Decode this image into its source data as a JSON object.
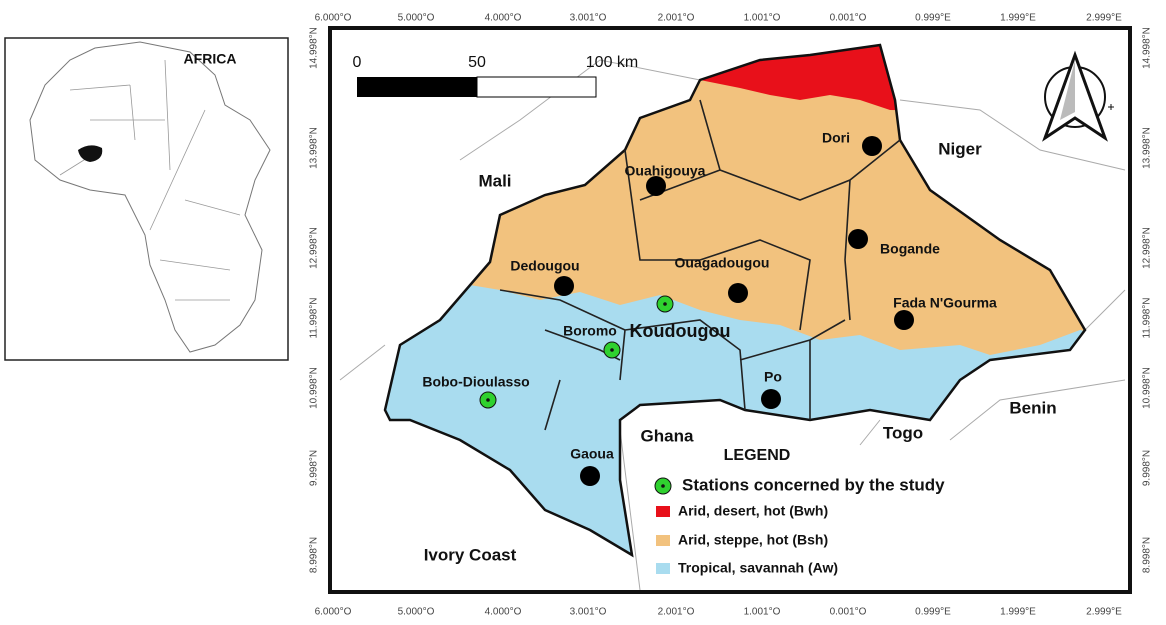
{
  "inset": {
    "label": "AFRICA"
  },
  "axes": {
    "top": [
      "6.000°O",
      "5.000°O",
      "4.000°O",
      "3.001°O",
      "2.001°O",
      "1.001°O",
      "0.001°O",
      "0.999°E",
      "1.999°E",
      "2.999°E"
    ],
    "bottom": [
      "6.000°O",
      "5.000°O",
      "4.000°O",
      "3.001°O",
      "2.001°O",
      "1.001°O",
      "0.001°O",
      "0.999°E",
      "1.999°E",
      "2.999°E"
    ],
    "left": [
      "14.998°N",
      "13.998°N",
      "12.998°N",
      "11.998°N",
      "10.998°N",
      "9.998°N",
      "8.998°N"
    ],
    "right": [
      "14.998°N",
      "13.998°N",
      "12.998°N",
      "11.998°N",
      "10.998°N",
      "9.998°N",
      "8.998°N"
    ]
  },
  "scale_bar": {
    "labels": [
      "0",
      "50",
      "100 km"
    ]
  },
  "places": [
    {
      "name": "Dori",
      "station": false
    },
    {
      "name": "Ouahigouya",
      "station": false
    },
    {
      "name": "Dedougou",
      "station": false
    },
    {
      "name": "Ouagadougou",
      "station": false
    },
    {
      "name": "Bogande",
      "station": false
    },
    {
      "name": "Fada N'Gourma",
      "station": false
    },
    {
      "name": "Boromo",
      "station": true
    },
    {
      "name": "Koudougou",
      "station": true
    },
    {
      "name": "Bobo-Dioulasso",
      "station": true
    },
    {
      "name": "Po",
      "station": false
    },
    {
      "name": "Gaoua",
      "station": false
    }
  ],
  "countries": [
    "Niger",
    "Mali",
    "Ghana",
    "Togo",
    "Benin",
    "Ivory Coast"
  ],
  "legend": {
    "title": "LEGEND",
    "items": [
      {
        "label": "Stations concerned by the study",
        "color": "#2fd12f"
      },
      {
        "label": "Arid, desert, hot (Bwh)",
        "color": "#e8101a"
      },
      {
        "label": "Arid, steppe, hot (Bsh)",
        "color": "#f2c27e"
      },
      {
        "label": "Tropical, savannah (Aw)",
        "color": "#a9dcef"
      }
    ]
  }
}
